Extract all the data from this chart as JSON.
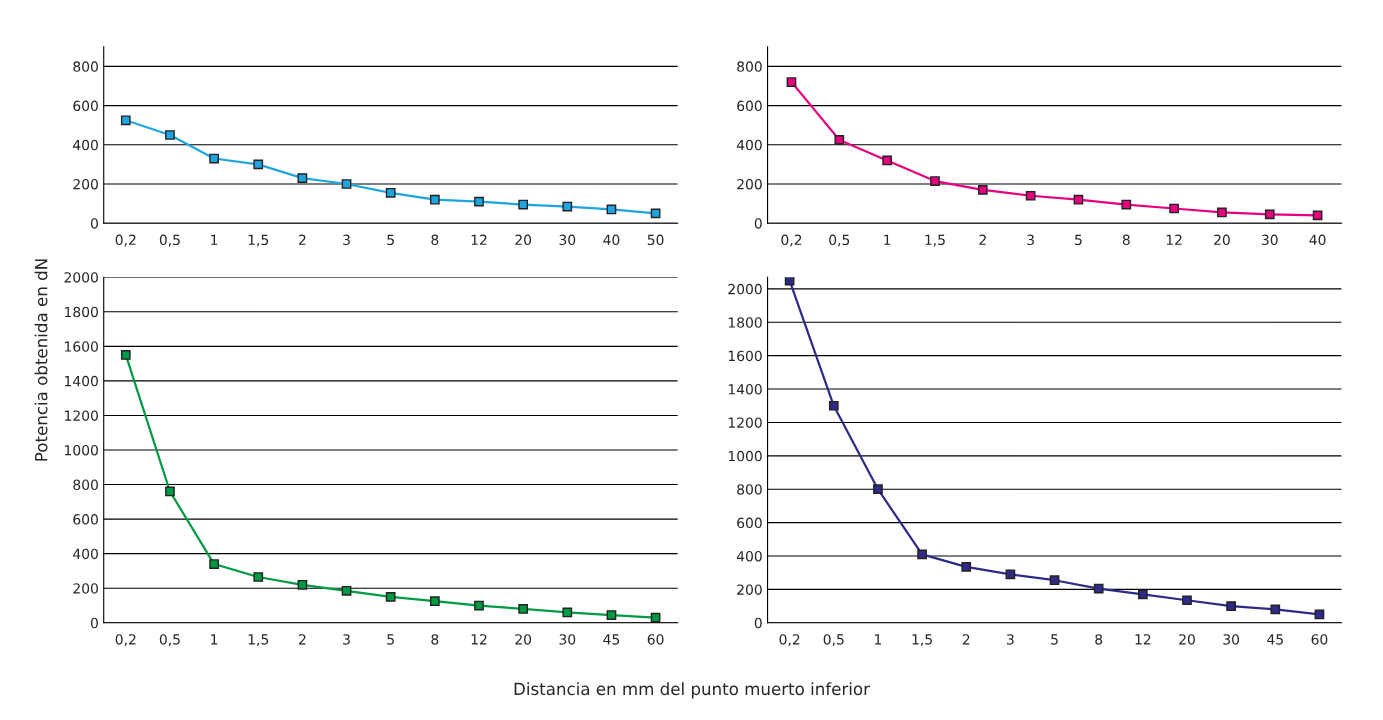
{
  "chart_data": [
    {
      "type": "line",
      "ylabel": "Potencia obtenida en dN",
      "categories": [
        "0,2",
        "0,5",
        "1",
        "1,5",
        "2",
        "3",
        "5",
        "8",
        "12",
        "20",
        "30",
        "40",
        "50"
      ],
      "series": [
        {
          "color": "#1ea5e0",
          "values": [
            525,
            450,
            330,
            300,
            230,
            200,
            155,
            120,
            110,
            95,
            85,
            70,
            50
          ]
        }
      ],
      "ylim": [
        0,
        900
      ],
      "yticks": [
        0,
        200,
        400,
        600,
        800
      ],
      "grid": "y",
      "marker": "square",
      "line_style": "solid"
    },
    {
      "type": "line",
      "categories": [
        "0,2",
        "0,5",
        "1",
        "1,5",
        "2",
        "3",
        "5",
        "8",
        "12",
        "20",
        "30",
        "40"
      ],
      "series": [
        {
          "color": "#e6007e",
          "values": [
            720,
            425,
            320,
            215,
            170,
            140,
            120,
            95,
            75,
            55,
            45,
            40
          ]
        }
      ],
      "ylim": [
        0,
        900
      ],
      "yticks": [
        0,
        200,
        400,
        600,
        800
      ],
      "grid": "y",
      "marker": "square",
      "line_style": "solid"
    },
    {
      "type": "line",
      "xlabel": "Distancia en mm del punto muerto inferior",
      "categories": [
        "0,2",
        "0,5",
        "1",
        "1,5",
        "2",
        "3",
        "5",
        "8",
        "12",
        "20",
        "30",
        "45",
        "60"
      ],
      "series": [
        {
          "color": "#009a44",
          "values": [
            1550,
            760,
            340,
            265,
            220,
            185,
            150,
            125,
            100,
            80,
            60,
            45,
            30
          ]
        }
      ],
      "ylim": [
        0,
        2000
      ],
      "yticks": [
        0,
        200,
        400,
        600,
        800,
        1000,
        1200,
        1400,
        1600,
        1800,
        2000
      ],
      "grid": "y",
      "marker": "square",
      "line_style": "solid"
    },
    {
      "type": "line",
      "categories": [
        "0,2",
        "0,5",
        "1",
        "1,5",
        "2",
        "3",
        "5",
        "8",
        "12",
        "20",
        "30",
        "45",
        "60"
      ],
      "series": [
        {
          "color": "#2e2a86",
          "values": [
            2050,
            1300,
            800,
            410,
            335,
            290,
            255,
            205,
            170,
            135,
            100,
            80,
            50
          ]
        }
      ],
      "ylim": [
        0,
        2070
      ],
      "yticks": [
        0,
        200,
        400,
        600,
        800,
        1000,
        1200,
        1400,
        1600,
        1800,
        2000
      ],
      "grid": "y",
      "marker": "square",
      "line_style": "solid"
    }
  ]
}
